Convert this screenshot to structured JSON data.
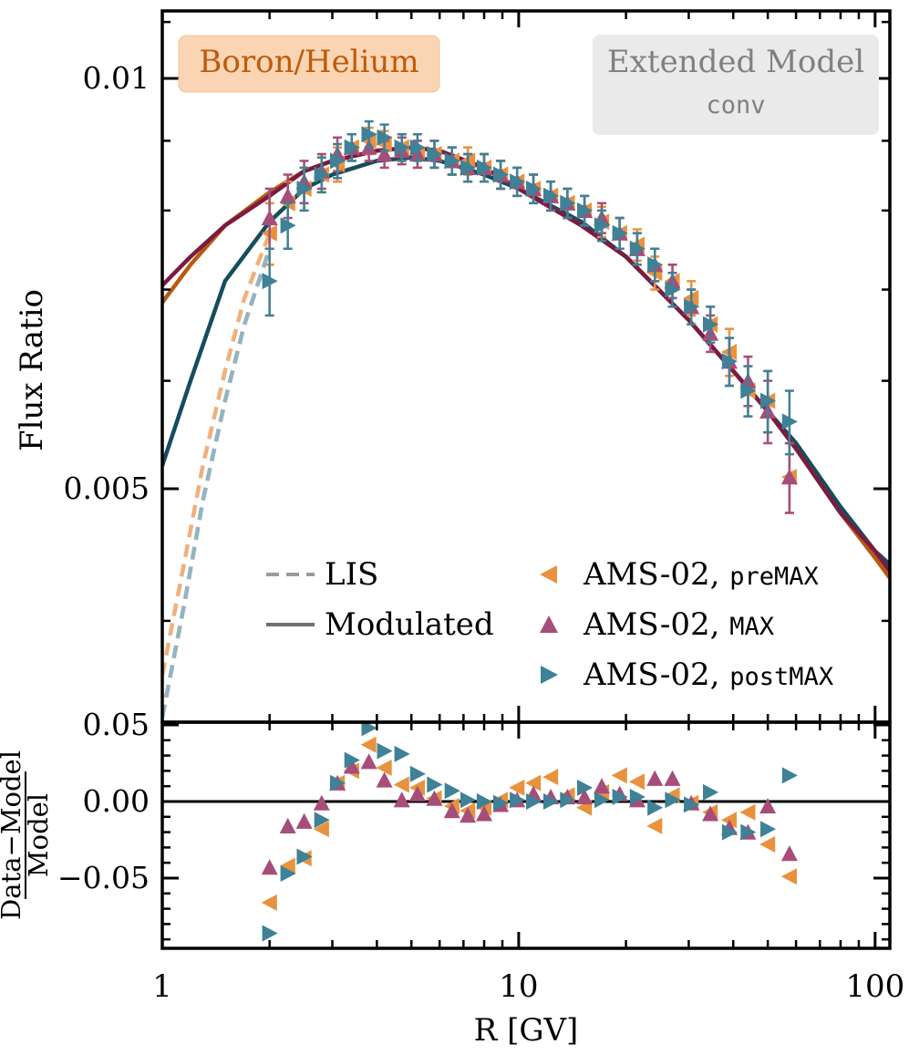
{
  "chart_data": [
    {
      "type": "line",
      "panel": "main",
      "badge": "Boron/Helium",
      "model_title": "Extended Model",
      "model_subtitle": "conv",
      "ylabel": "Flux Ratio",
      "xscale": "log",
      "yscale": "log",
      "xlim": [
        1,
        110
      ],
      "ylim": [
        0.0034,
        0.011
      ],
      "yticks": [
        {
          "value": 0.01,
          "label": "0.01"
        },
        {
          "value": 0.005,
          "label": "0.005"
        }
      ],
      "legend": {
        "lis": "LIS",
        "modulated": "Modulated",
        "pre": "AMS-02, ",
        "pre_code": "preMAX",
        "max": "AMS-02, ",
        "max_code": "MAX",
        "post": "AMS-02, ",
        "post_code": "postMAX"
      },
      "colors": {
        "pre": "#e8923e",
        "max": "#a64d7a",
        "post": "#3f8196",
        "pre_lis": "#f0b07c",
        "max_lis": "#c7a0b4",
        "post_lis": "#93b4c0",
        "pre_mod": "#b85a10",
        "max_mod": "#7a1c42",
        "post_mod": "#164d5c",
        "badge_bg": "#f9d5b4",
        "badge_text": "#c05a0a",
        "model_bg": "#eaeaea",
        "model_text": "#808080"
      },
      "lis_curves": {
        "pre": {
          "x": [
            1.0,
            1.15,
            1.3,
            1.5,
            1.7,
            2.0
          ],
          "y": [
            0.00365,
            0.0044,
            0.0052,
            0.0061,
            0.0069,
            0.0077
          ]
        },
        "max": {
          "x": [
            1.0,
            1.15,
            1.3,
            1.5,
            1.7,
            2.0
          ],
          "y": [
            0.0034,
            0.0041,
            0.0049,
            0.0058,
            0.0066,
            0.0075
          ]
        },
        "post": {
          "x": [
            1.0,
            1.15,
            1.3,
            1.5,
            1.7,
            2.0
          ],
          "y": [
            0.0034,
            0.0041,
            0.0049,
            0.0058,
            0.0066,
            0.0075
          ]
        }
      },
      "modulated_curves": {
        "pre": {
          "x": [
            1.0,
            1.2,
            1.5,
            2.0,
            2.5,
            3.0,
            4.0,
            5.0,
            6.0,
            8.0,
            10,
            15,
            20,
            30,
            40,
            50,
            60,
            80,
            100,
            110
          ],
          "y": [
            0.00685,
            0.0073,
            0.0078,
            0.00825,
            0.00855,
            0.0087,
            0.00885,
            0.0089,
            0.00885,
            0.0086,
            0.0083,
            0.0078,
            0.0074,
            0.00665,
            0.0061,
            0.0057,
            0.00535,
            0.0048,
            0.00445,
            0.0043
          ]
        },
        "max": {
          "x": [
            1.0,
            1.2,
            1.5,
            2.0,
            2.5,
            3.0,
            4.0,
            5.0,
            6.0,
            8.0,
            10,
            15,
            20,
            30,
            40,
            50,
            60,
            80,
            100,
            110
          ],
          "y": [
            0.00705,
            0.0074,
            0.0078,
            0.0082,
            0.00855,
            0.0087,
            0.00885,
            0.0089,
            0.00885,
            0.0086,
            0.0083,
            0.0078,
            0.0074,
            0.00665,
            0.0061,
            0.0057,
            0.00535,
            0.0048,
            0.0045,
            0.00435
          ]
        },
        "post": {
          "x": [
            1.0,
            1.2,
            1.5,
            2.0,
            2.5,
            3.0,
            4.0,
            5.0,
            6.0,
            8.0,
            10,
            15,
            20,
            30,
            40,
            50,
            60,
            80,
            100,
            110
          ],
          "y": [
            0.0052,
            0.006,
            0.0071,
            0.00785,
            0.0083,
            0.0085,
            0.0087,
            0.00875,
            0.0087,
            0.0085,
            0.0083,
            0.00785,
            0.0074,
            0.00665,
            0.0061,
            0.0057,
            0.0054,
            0.00485,
            0.0045,
            0.0044
          ]
        }
      },
      "series": [
        {
          "name": "AMS-02, preMAX",
          "key": "pre",
          "marker": "triangle-left",
          "x": [
            2.0,
            2.25,
            2.5,
            2.8,
            3.1,
            3.4,
            3.8,
            4.2,
            4.7,
            5.2,
            5.8,
            6.5,
            7.2,
            8.0,
            8.9,
            9.9,
            11.0,
            12.3,
            13.7,
            15.3,
            17.1,
            19.2,
            21.5,
            24.1,
            27.0,
            30.5,
            34.5,
            39.0,
            44.0,
            50.0,
            57.5
          ],
          "y": [
            0.0077,
            0.0081,
            0.0083,
            0.0085,
            0.00865,
            0.0089,
            0.009,
            0.00895,
            0.0089,
            0.0088,
            0.0088,
            0.0087,
            0.0087,
            0.0086,
            0.0085,
            0.0084,
            0.0083,
            0.0082,
            0.0081,
            0.008,
            0.00785,
            0.0077,
            0.00755,
            0.0072,
            0.0071,
            0.0069,
            0.0066,
            0.0063,
            0.0059,
            0.0058,
            0.0051
          ],
          "yerr": [
            0.0004,
            0.0003,
            0.0003,
            0.00025,
            0.00025,
            0.0002,
            0.0002,
            0.0002,
            0.0002,
            0.0002,
            0.0002,
            0.0002,
            0.0002,
            0.0002,
            0.0002,
            0.0002,
            0.0002,
            0.0002,
            0.0002,
            0.0002,
            0.0002,
            0.0002,
            0.0002,
            0.0002,
            0.0002,
            0.0002,
            0.0002,
            0.00025,
            0.00025,
            0.0003,
            0.0003
          ]
        },
        {
          "name": "AMS-02, MAX",
          "key": "max",
          "marker": "triangle-up",
          "x": [
            2.0,
            2.25,
            2.5,
            2.8,
            3.1,
            3.4,
            3.8,
            4.2,
            4.7,
            5.2,
            5.8,
            6.5,
            7.2,
            8.0,
            8.9,
            9.9,
            11.0,
            12.3,
            13.7,
            15.3,
            17.1,
            19.2,
            21.5,
            24.1,
            27.0,
            30.5,
            34.5,
            39.0,
            44.0,
            50.0,
            57.5
          ],
          "y": [
            0.0079,
            0.0082,
            0.0084,
            0.00855,
            0.0088,
            0.0089,
            0.0089,
            0.0088,
            0.00885,
            0.0088,
            0.0088,
            0.0087,
            0.0086,
            0.0086,
            0.0085,
            0.0084,
            0.0083,
            0.0082,
            0.0081,
            0.008,
            0.0079,
            0.0077,
            0.0075,
            0.0073,
            0.0071,
            0.0068,
            0.0065,
            0.0062,
            0.006,
            0.0057,
            0.0051
          ],
          "yerr": [
            0.0004,
            0.0003,
            0.0003,
            0.00025,
            0.00025,
            0.0002,
            0.0002,
            0.0002,
            0.0002,
            0.0002,
            0.0002,
            0.0002,
            0.0002,
            0.0002,
            0.0002,
            0.0002,
            0.0002,
            0.0002,
            0.0002,
            0.0002,
            0.0002,
            0.0002,
            0.0002,
            0.0002,
            0.0002,
            0.0002,
            0.0002,
            0.00025,
            0.00025,
            0.0003,
            0.0003
          ]
        },
        {
          "name": "AMS-02, postMAX",
          "key": "post",
          "marker": "triangle-right",
          "x": [
            2.0,
            2.25,
            2.5,
            2.8,
            3.1,
            3.4,
            3.8,
            4.2,
            4.7,
            5.2,
            5.8,
            6.5,
            7.2,
            8.0,
            8.9,
            9.9,
            11.0,
            12.3,
            13.7,
            15.3,
            17.1,
            19.2,
            21.5,
            24.1,
            27.0,
            30.5,
            34.5,
            39.0,
            44.0,
            50.0,
            57.5
          ],
          "y": [
            0.0071,
            0.0078,
            0.0083,
            0.0085,
            0.0087,
            0.0089,
            0.0091,
            0.00905,
            0.0089,
            0.0089,
            0.0088,
            0.0087,
            0.0086,
            0.0086,
            0.0085,
            0.0084,
            0.0083,
            0.0082,
            0.0081,
            0.008,
            0.0078,
            0.0077,
            0.0075,
            0.0073,
            0.007,
            0.0068,
            0.0066,
            0.0062,
            0.0059,
            0.0058,
            0.0056
          ],
          "yerr": [
            0.0004,
            0.0003,
            0.0003,
            0.00025,
            0.00025,
            0.0002,
            0.0002,
            0.0002,
            0.0002,
            0.0002,
            0.0002,
            0.0002,
            0.0002,
            0.0002,
            0.0002,
            0.0002,
            0.0002,
            0.0002,
            0.0002,
            0.0002,
            0.0002,
            0.0002,
            0.0002,
            0.0002,
            0.0002,
            0.0002,
            0.0002,
            0.00025,
            0.00025,
            0.0003,
            0.0003
          ]
        }
      ]
    },
    {
      "type": "scatter",
      "panel": "residual",
      "ylabel_numerator": "Data−Model",
      "ylabel_denominator": "Model",
      "xlabel": "R [GV]",
      "xscale": "log",
      "xlim": [
        1,
        110
      ],
      "ylim": [
        -0.095,
        0.05
      ],
      "yticks": [
        {
          "value": 0.05,
          "label": "0.05"
        },
        {
          "value": 0.0,
          "label": "0.00"
        },
        {
          "value": -0.05,
          "label": "−0.05"
        }
      ],
      "xticks": [
        {
          "value": 1,
          "label": "1"
        },
        {
          "value": 10,
          "label": "10"
        },
        {
          "value": 100,
          "label": "100"
        }
      ],
      "series": [
        {
          "name": "AMS-02, preMAX",
          "key": "pre",
          "marker": "triangle-left",
          "x": [
            2.0,
            2.25,
            2.5,
            2.8,
            3.1,
            3.4,
            3.8,
            4.2,
            4.7,
            5.2,
            5.8,
            6.5,
            7.2,
            8.0,
            8.9,
            9.9,
            11.0,
            12.3,
            13.7,
            15.3,
            17.1,
            19.2,
            21.5,
            24.1,
            27.0,
            30.5,
            34.5,
            39.0,
            44.0,
            50.0,
            57.5
          ],
          "y": [
            -0.066,
            -0.042,
            -0.037,
            -0.018,
            0.012,
            0.02,
            0.037,
            0.022,
            0.011,
            0.009,
            0.002,
            -0.003,
            -0.006,
            -0.004,
            0.001,
            0.009,
            0.012,
            0.016,
            0.004,
            -0.004,
            0.006,
            0.017,
            0.013,
            -0.016,
            0.004,
            -0.001,
            -0.007,
            -0.012,
            -0.007,
            -0.028,
            -0.049
          ]
        },
        {
          "name": "AMS-02, MAX",
          "key": "max",
          "marker": "triangle-up",
          "x": [
            2.0,
            2.25,
            2.5,
            2.8,
            3.1,
            3.4,
            3.8,
            4.2,
            4.7,
            5.2,
            5.8,
            6.5,
            7.2,
            8.0,
            8.9,
            9.9,
            11.0,
            12.3,
            13.7,
            15.3,
            17.1,
            19.2,
            21.5,
            24.1,
            27.0,
            30.5,
            34.5,
            39.0,
            44.0,
            50.0,
            57.5
          ],
          "y": [
            -0.043,
            -0.016,
            -0.013,
            -0.001,
            0.012,
            0.023,
            0.026,
            0.014,
            0.001,
            0.005,
            0.002,
            -0.006,
            -0.009,
            -0.008,
            -0.002,
            0.001,
            0.005,
            0.003,
            0.003,
            0.003,
            0.01,
            0.005,
            0.001,
            0.015,
            0.015,
            -0.001,
            -0.008,
            -0.017,
            -0.02,
            -0.003,
            -0.034
          ]
        },
        {
          "name": "AMS-02, postMAX",
          "key": "post",
          "marker": "triangle-right",
          "x": [
            2.0,
            2.25,
            2.5,
            2.8,
            3.1,
            3.4,
            3.8,
            4.2,
            4.7,
            5.2,
            5.8,
            6.5,
            7.2,
            8.0,
            8.9,
            9.9,
            11.0,
            12.3,
            13.7,
            15.3,
            17.1,
            19.2,
            21.5,
            24.1,
            27.0,
            30.5,
            34.5,
            39.0,
            44.0,
            50.0,
            57.5
          ],
          "y": [
            -0.086,
            -0.047,
            -0.036,
            -0.012,
            0.012,
            0.027,
            0.048,
            0.033,
            0.031,
            0.018,
            0.011,
            0.007,
            0.001,
            0.0,
            -0.001,
            0.001,
            0.0,
            0.0,
            0.001,
            0.009,
            0.001,
            0.003,
            0.003,
            -0.004,
            0.001,
            -0.002,
            0.006,
            -0.02,
            -0.02,
            -0.018,
            0.017
          ]
        }
      ]
    }
  ]
}
